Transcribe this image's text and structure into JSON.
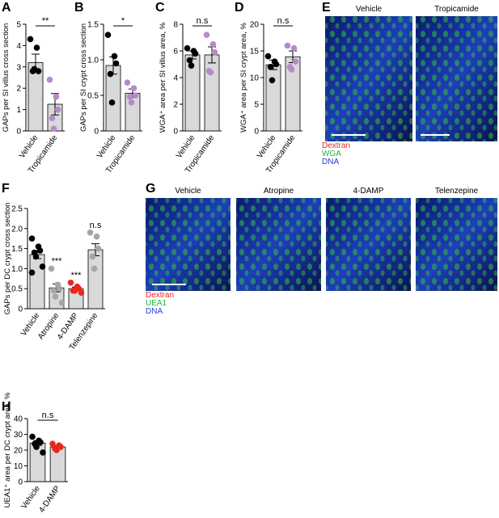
{
  "chart_data": [
    {
      "panel": "A",
      "type": "bar",
      "ylabel": "GAPs per SI villus cross section",
      "categories": [
        "Vehicle",
        "Tropicamide"
      ],
      "values": [
        3.2,
        1.25
      ],
      "errors": [
        0.4,
        0.5
      ],
      "points": [
        [
          4.3,
          3.9,
          2.8,
          2.8,
          2.9
        ],
        [
          2.4,
          1.6,
          1.0,
          0.6,
          0.1
        ]
      ],
      "point_colors": [
        "#000000",
        "#b58ac9"
      ],
      "bar_color": "#d9d9d9",
      "ylim": [
        0,
        5
      ],
      "yticks": [
        0,
        1,
        2,
        3,
        4,
        5
      ],
      "bracket_label": "**"
    },
    {
      "panel": "B",
      "type": "bar",
      "ylabel": "GAPs per SI crypt cross section",
      "categories": [
        "Vehicle",
        "Tropicamide"
      ],
      "values": [
        0.92,
        0.53
      ],
      "errors": [
        0.12,
        0.06
      ],
      "points": [
        [
          1.35,
          1.05,
          0.95,
          0.8,
          0.4
        ],
        [
          0.68,
          0.6,
          0.5,
          0.48,
          0.4
        ]
      ],
      "point_colors": [
        "#000000",
        "#b58ac9"
      ],
      "bar_color": "#d9d9d9",
      "ylim": [
        0,
        1.5
      ],
      "yticks": [
        0,
        0.5,
        {
          "value": 1,
          "label": "1.0"
        },
        1.5
      ],
      "bracket_label": "*"
    },
    {
      "panel": "C",
      "type": "bar",
      "ylabel": "WGA⁺ area per SI villus area, %",
      "categories": [
        "Vehicle",
        "Tropicamide"
      ],
      "values": [
        5.7,
        5.7
      ],
      "errors": [
        0.3,
        0.6
      ],
      "points": [
        [
          6.2,
          6.0,
          5.8,
          5.3,
          4.9
        ],
        [
          7.2,
          6.5,
          5.9,
          4.5,
          4.4
        ]
      ],
      "point_colors": [
        "#000000",
        "#b58ac9"
      ],
      "bar_color": "#d9d9d9",
      "ylim": [
        0,
        8
      ],
      "yticks": [
        0,
        2,
        4,
        6,
        8
      ],
      "bracket_label": "n.s"
    },
    {
      "panel": "D",
      "type": "bar",
      "ylabel": "WGA⁺ area per SI crypt area, %",
      "categories": [
        "Vehicle",
        "Tropicamide"
      ],
      "values": [
        12.4,
        13.9
      ],
      "errors": [
        0.9,
        1.1
      ],
      "points": [
        [
          14,
          13,
          12.5,
          12,
          9.5
        ],
        [
          16,
          15.5,
          13,
          12,
          11.5
        ]
      ],
      "point_colors": [
        "#000000",
        "#b58ac9"
      ],
      "bar_color": "#d9d9d9",
      "ylim": [
        0,
        20
      ],
      "yticks": [
        0,
        5,
        10,
        15,
        20
      ],
      "bracket_label": "n.s"
    },
    {
      "panel": "F",
      "type": "bar",
      "ylabel": "GAPs per DC crypt cross section",
      "categories": [
        "Vehicle",
        "Atropine",
        "4-DAMP",
        "Telenzepine"
      ],
      "values": [
        1.35,
        0.52,
        0.5,
        1.47
      ],
      "errors": [
        0.1,
        0.1,
        0.04,
        0.15
      ],
      "points": [
        [
          1.75,
          1.55,
          1.45,
          1.4,
          1.3,
          1.05,
          0.9
        ],
        [
          1.0,
          0.6,
          0.5,
          0.45,
          0.3,
          0.15
        ],
        [
          0.65,
          0.55,
          0.5,
          0.45,
          0.45,
          0.4
        ],
        [
          1.9,
          1.8,
          1.5,
          1.3,
          1.0
        ]
      ],
      "point_colors": [
        "#000000",
        "#a6a6a6",
        "#e8281e",
        "#a6a6a6"
      ],
      "bar_color": "#d9d9d9",
      "ylim": [
        0,
        2.5
      ],
      "yticks": [
        0,
        0.5,
        {
          "value": 1,
          "label": "1.0"
        },
        1.5,
        {
          "value": 2,
          "label": "2.0"
        },
        2.5
      ],
      "annotations": [
        null,
        "***",
        "***",
        "n.s"
      ]
    },
    {
      "panel": "H",
      "type": "bar",
      "ylabel": "UEA1⁺ area per DC crypt area, %",
      "categories": [
        "Vehicle",
        "4-DAMP"
      ],
      "values": [
        24.5,
        22
      ],
      "errors": [
        1.5,
        0.8
      ],
      "points": [
        [
          28.5,
          26,
          25,
          24,
          22,
          18.5
        ],
        [
          24,
          23,
          22,
          21,
          20
        ]
      ],
      "point_colors": [
        "#000000",
        "#e8281e"
      ],
      "bar_color": "#d9d9d9",
      "ylim": [
        0,
        40
      ],
      "yticks": [
        0,
        10,
        20,
        30,
        40
      ],
      "bracket_label": "n.s"
    }
  ],
  "images": [
    {
      "panel": "E",
      "titles": [
        "Vehicle",
        "Tropicamide"
      ],
      "legend": [
        {
          "label": "Dextran",
          "color": "#e8281e"
        },
        {
          "label": "WGA",
          "color": "#22b33a"
        },
        {
          "label": "DNA",
          "color": "#2a3fd6"
        }
      ]
    },
    {
      "panel": "G",
      "titles": [
        "Vehicle",
        "Atropine",
        "4-DAMP",
        "Telenzepine"
      ],
      "legend": [
        {
          "label": "Dextran",
          "color": "#e8281e"
        },
        {
          "label": "UEA1",
          "color": "#22b33a"
        },
        {
          "label": "DNA",
          "color": "#2a3fd6"
        }
      ]
    }
  ]
}
